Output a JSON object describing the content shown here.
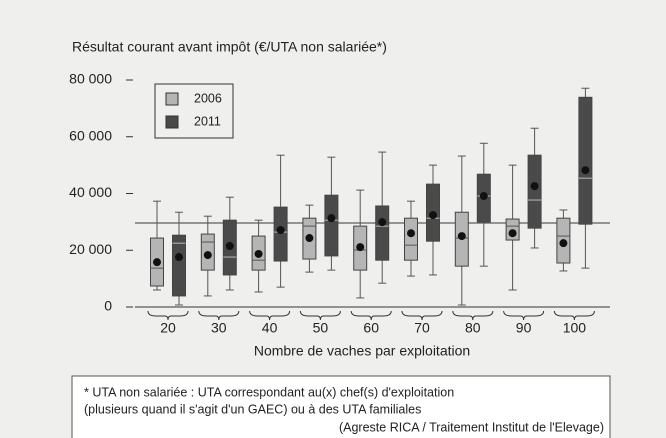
{
  "chart_data": {
    "type": "box",
    "title": "Résultat courant avant impôt (€/UTA non salariée*)",
    "x_label": "Nombre de vaches par exploitation",
    "categories": [
      "20",
      "30",
      "40",
      "50",
      "60",
      "70",
      "80",
      "90",
      "100"
    ],
    "ylim": [
      0,
      80000
    ],
    "yticks": [
      0,
      {
        "value": 20000,
        "label": "20 000"
      },
      {
        "value": 40000,
        "label": "40 000"
      },
      {
        "value": 60000,
        "label": "60 000"
      },
      {
        "value": 80000,
        "label": "80 000"
      }
    ],
    "reference_line": 29600,
    "legend": "top-left",
    "series": [
      {
        "name": "2006",
        "color": "#b5b5b5",
        "whisker_low": [
          6000,
          3900,
          5300,
          12300,
          3200,
          10900,
          700,
          6000,
          12700
        ],
        "q1": [
          7400,
          13000,
          13000,
          16900,
          13000,
          16500,
          14400,
          23600,
          15500
        ],
        "median": [
          13700,
          22900,
          16500,
          28500,
          20100,
          21800,
          24300,
          28500,
          25000
        ],
        "q3": [
          24300,
          25700,
          25000,
          31300,
          28500,
          31300,
          33400,
          31000,
          31300
        ],
        "whisker_high": [
          37300,
          32000,
          30600,
          35900,
          41200,
          37300,
          53200,
          50000,
          34200
        ],
        "mean": [
          15800,
          18300,
          18700,
          24300,
          21100,
          26000,
          25000,
          26000,
          22500
        ]
      },
      {
        "name": "2011",
        "color": "#4a4a4a",
        "whisker_low": [
          700,
          6000,
          7000,
          13000,
          8400,
          11300,
          14400,
          20800,
          13700
        ],
        "q1": [
          3900,
          11300,
          16200,
          18000,
          16500,
          23200,
          29900,
          27800,
          29200
        ],
        "median": [
          22500,
          17600,
          26400,
          30600,
          28500,
          31300,
          39100,
          37700,
          45400
        ],
        "q3": [
          25300,
          30600,
          35200,
          39400,
          35600,
          43300,
          46800,
          53500,
          73900
        ],
        "whisker_high": [
          33400,
          38700,
          53500,
          52800,
          54600,
          50000,
          57700,
          63000,
          77100
        ],
        "mean": [
          17600,
          21500,
          27100,
          31300,
          29900,
          32400,
          39100,
          42600,
          48200
        ]
      }
    ],
    "footnote": [
      "* UTA non salariée : UTA correspondant au(x) chef(s) d'exploitation",
      "(plusieurs quand il s'agit d'un GAEC) ou à des UTA familiales"
    ],
    "source": "(Agreste RICA / Traitement Institut de l'Elevage)"
  }
}
